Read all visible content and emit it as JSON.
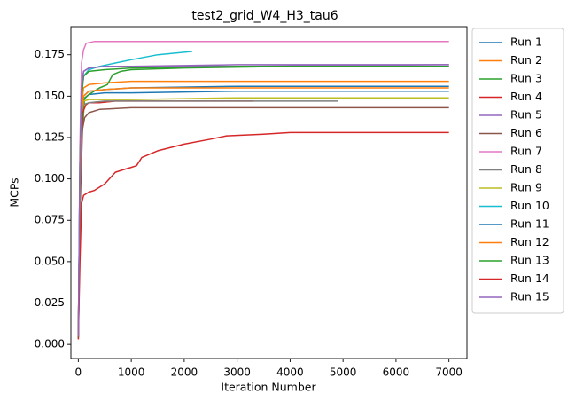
{
  "chart_data": {
    "type": "line",
    "title": "test2_grid_W4_H3_tau6",
    "xlabel": "Iteration Number",
    "ylabel": "MCPs",
    "xlim": [
      -140,
      7340
    ],
    "ylim": [
      -0.0085,
      0.192
    ],
    "xticks": [
      0,
      1000,
      2000,
      3000,
      4000,
      5000,
      6000,
      7000
    ],
    "xtick_labels": [
      "0",
      "1000",
      "2000",
      "3000",
      "4000",
      "5000",
      "6000",
      "7000"
    ],
    "yticks": [
      0.0,
      0.025,
      0.05,
      0.075,
      0.1,
      0.125,
      0.15,
      0.175
    ],
    "ytick_labels": [
      "0.000",
      "0.025",
      "0.050",
      "0.075",
      "0.100",
      "0.125",
      "0.150",
      "0.175"
    ],
    "grid": false,
    "legend_position": "outside-right",
    "series": [
      {
        "name": "Run 1",
        "color": "#1f77b4",
        "x": [
          0,
          30,
          60,
          100,
          200,
          500,
          1000,
          3000,
          7000
        ],
        "y": [
          0.005,
          0.09,
          0.135,
          0.148,
          0.151,
          0.152,
          0.152,
          0.153,
          0.153
        ]
      },
      {
        "name": "Run 2",
        "color": "#ff7f0e",
        "x": [
          0,
          30,
          60,
          100,
          200,
          500,
          1000,
          3000,
          7000
        ],
        "y": [
          0.005,
          0.1,
          0.145,
          0.155,
          0.157,
          0.158,
          0.159,
          0.159,
          0.159
        ]
      },
      {
        "name": "Run 3",
        "color": "#2ca02c",
        "x": [
          0,
          50,
          80,
          120,
          200,
          300,
          400,
          550,
          650,
          800,
          1000,
          2000,
          4000,
          7000
        ],
        "y": [
          0.004,
          0.12,
          0.13,
          0.149,
          0.151,
          0.153,
          0.155,
          0.157,
          0.163,
          0.165,
          0.166,
          0.167,
          0.168,
          0.168
        ]
      },
      {
        "name": "Run 4",
        "color": "#d62728",
        "x": [
          0,
          40,
          80,
          150,
          200,
          400,
          700,
          1000,
          3300
        ],
        "y": [
          0.003,
          0.1,
          0.14,
          0.145,
          0.146,
          0.146,
          0.147,
          0.147,
          0.147
        ]
      },
      {
        "name": "Run 5",
        "color": "#9467bd",
        "x": [
          0,
          30,
          60,
          100,
          200,
          500,
          1000,
          3000,
          7000
        ],
        "y": [
          0.005,
          0.11,
          0.155,
          0.165,
          0.167,
          0.168,
          0.168,
          0.168,
          0.169
        ]
      },
      {
        "name": "Run 6",
        "color": "#8c564b",
        "x": [
          0,
          40,
          80,
          120,
          200,
          400,
          1000,
          3000,
          7000
        ],
        "y": [
          0.004,
          0.09,
          0.13,
          0.137,
          0.14,
          0.142,
          0.143,
          0.143,
          0.143
        ]
      },
      {
        "name": "Run 7",
        "color": "#e377c2",
        "x": [
          0,
          30,
          60,
          100,
          150,
          300,
          1000,
          3000,
          7000
        ],
        "y": [
          0.005,
          0.12,
          0.17,
          0.178,
          0.182,
          0.183,
          0.183,
          0.183,
          0.183
        ]
      },
      {
        "name": "Run 8",
        "color": "#7f7f7f",
        "x": [
          0,
          30,
          60,
          100,
          200,
          500,
          1000,
          3000,
          4900
        ],
        "y": [
          0.005,
          0.1,
          0.14,
          0.145,
          0.146,
          0.147,
          0.147,
          0.147,
          0.147
        ]
      },
      {
        "name": "Run 9",
        "color": "#bcbd22",
        "x": [
          0,
          30,
          60,
          100,
          200,
          500,
          1000,
          3000,
          7000
        ],
        "y": [
          0.005,
          0.1,
          0.14,
          0.147,
          0.148,
          0.148,
          0.148,
          0.149,
          0.149
        ]
      },
      {
        "name": "Run 10",
        "color": "#17becf",
        "x": [
          0,
          30,
          60,
          100,
          200,
          400,
          700,
          1000,
          1500,
          2150
        ],
        "y": [
          0.005,
          0.11,
          0.15,
          0.162,
          0.166,
          0.168,
          0.17,
          0.172,
          0.175,
          0.177
        ]
      },
      {
        "name": "Run 11",
        "color": "#1f77b4",
        "x": [
          0,
          30,
          60,
          100,
          200,
          500,
          1000,
          3000,
          7000
        ],
        "y": [
          0.005,
          0.1,
          0.14,
          0.15,
          0.153,
          0.154,
          0.155,
          0.156,
          0.156
        ]
      },
      {
        "name": "Run 12",
        "color": "#ff7f0e",
        "x": [
          0,
          30,
          60,
          100,
          200,
          500,
          1000,
          3000,
          7000
        ],
        "y": [
          0.005,
          0.1,
          0.14,
          0.15,
          0.153,
          0.154,
          0.155,
          0.155,
          0.155
        ]
      },
      {
        "name": "Run 13",
        "color": "#2ca02c",
        "x": [
          0,
          30,
          60,
          100,
          200,
          500,
          1000,
          3000,
          7000
        ],
        "y": [
          0.005,
          0.11,
          0.15,
          0.162,
          0.165,
          0.166,
          0.167,
          0.168,
          0.168
        ]
      },
      {
        "name": "Run 14",
        "color": "#d62728",
        "x": [
          0,
          30,
          60,
          100,
          150,
          200,
          300,
          500,
          700,
          900,
          1000,
          1100,
          1200,
          1500,
          2000,
          2500,
          2800,
          3500,
          4000,
          5000,
          6000,
          7000
        ],
        "y": [
          0.005,
          0.05,
          0.085,
          0.09,
          0.091,
          0.092,
          0.093,
          0.097,
          0.104,
          0.106,
          0.107,
          0.108,
          0.113,
          0.117,
          0.121,
          0.124,
          0.126,
          0.127,
          0.128,
          0.128,
          0.128,
          0.128
        ]
      },
      {
        "name": "Run 15",
        "color": "#9467bd",
        "x": [
          0,
          30,
          60,
          100,
          200,
          500,
          1000,
          3000,
          7000
        ],
        "y": [
          0.005,
          0.11,
          0.155,
          0.165,
          0.167,
          0.168,
          0.168,
          0.169,
          0.169
        ]
      }
    ]
  }
}
